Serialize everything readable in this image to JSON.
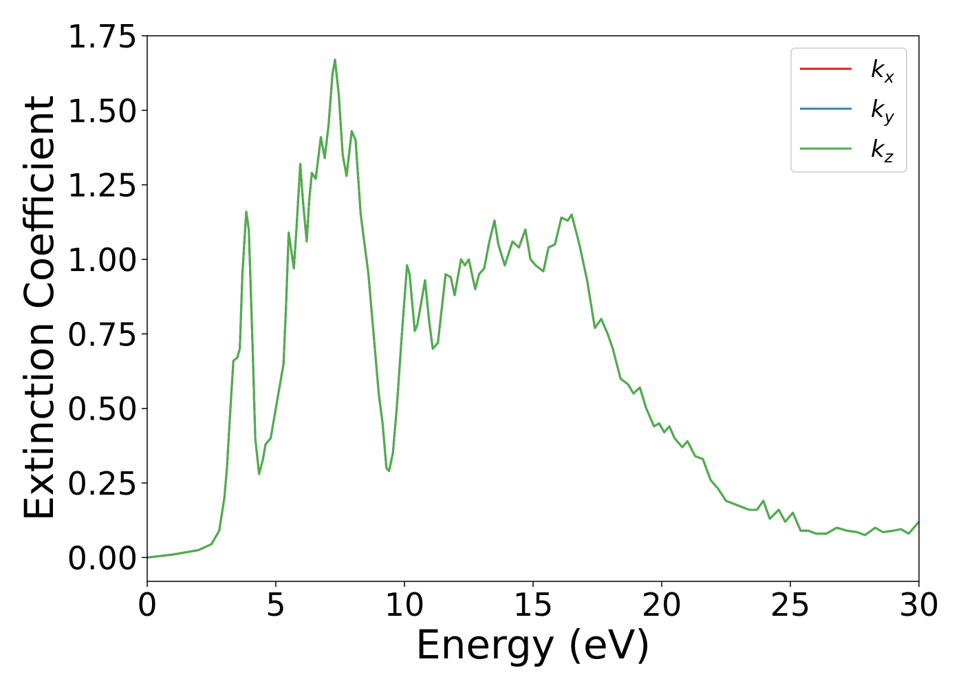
{
  "chart_data": {
    "type": "line",
    "xlabel": "Energy (eV)",
    "ylabel": "Extinction Coefficient",
    "xlim": [
      0,
      30
    ],
    "ylim": [
      -0.08,
      1.75
    ],
    "xticks": [
      0,
      5,
      10,
      15,
      20,
      25,
      30
    ],
    "yticks": [
      {
        "value": 0,
        "label": "0.00"
      },
      {
        "value": 0.25,
        "label": "0.25"
      },
      {
        "value": 0.5,
        "label": "0.50"
      },
      {
        "value": 0.75,
        "label": "0.75"
      },
      {
        "value": 1,
        "label": "1.00"
      },
      {
        "value": 1.25,
        "label": "1.25"
      },
      {
        "value": 1.5,
        "label": "1.50"
      },
      {
        "value": 1.75,
        "label": "1.75"
      }
    ],
    "legend": "upper right",
    "grid": false,
    "x": [
      0,
      1,
      2,
      2.5,
      2.8,
      3.0,
      3.1,
      3.2,
      3.35,
      3.5,
      3.6,
      3.7,
      3.85,
      3.95,
      4.1,
      4.2,
      4.35,
      4.5,
      4.6,
      4.8,
      5.0,
      5.3,
      5.4,
      5.5,
      5.6,
      5.7,
      5.8,
      5.95,
      6.05,
      6.2,
      6.3,
      6.4,
      6.55,
      6.75,
      6.9,
      7.05,
      7.2,
      7.3,
      7.45,
      7.6,
      7.75,
      7.95,
      8.1,
      8.3,
      8.6,
      8.8,
      9.0,
      9.15,
      9.3,
      9.4,
      9.55,
      9.7,
      9.9,
      10.1,
      10.2,
      10.4,
      10.5,
      10.8,
      10.95,
      11.1,
      11.3,
      11.6,
      11.8,
      11.95,
      12.2,
      12.35,
      12.5,
      12.75,
      12.9,
      13.1,
      13.3,
      13.5,
      13.65,
      13.9,
      14.2,
      14.45,
      14.7,
      14.9,
      15.1,
      15.4,
      15.6,
      15.85,
      16.1,
      16.35,
      16.5,
      16.8,
      17.1,
      17.4,
      17.65,
      17.9,
      18.1,
      18.4,
      18.7,
      18.9,
      19.15,
      19.4,
      19.7,
      19.9,
      20.1,
      20.3,
      20.5,
      20.8,
      21.0,
      21.3,
      21.6,
      21.9,
      22.2,
      22.5,
      22.8,
      23.1,
      23.4,
      23.7,
      23.95,
      24.2,
      24.55,
      24.8,
      25.1,
      25.4,
      25.7,
      26.0,
      26.4,
      26.8,
      27.2,
      27.6,
      27.9,
      28.3,
      28.6,
      29.0,
      29.3,
      29.6,
      30.0
    ],
    "series": [
      {
        "name": "kx",
        "color": "#e41a1c",
        "values": [
          0,
          0.01,
          0.025,
          0.045,
          0.09,
          0.2,
          0.3,
          0.45,
          0.66,
          0.67,
          0.7,
          0.95,
          1.16,
          1.1,
          0.7,
          0.4,
          0.28,
          0.33,
          0.38,
          0.4,
          0.5,
          0.65,
          0.85,
          1.09,
          1.03,
          0.97,
          1.1,
          1.32,
          1.2,
          1.06,
          1.2,
          1.29,
          1.27,
          1.41,
          1.34,
          1.45,
          1.62,
          1.67,
          1.55,
          1.35,
          1.28,
          1.43,
          1.4,
          1.15,
          0.95,
          0.75,
          0.55,
          0.45,
          0.3,
          0.29,
          0.35,
          0.5,
          0.75,
          0.98,
          0.95,
          0.76,
          0.78,
          0.93,
          0.8,
          0.7,
          0.72,
          0.95,
          0.94,
          0.88,
          1.0,
          0.98,
          1.0,
          0.9,
          0.95,
          0.97,
          1.06,
          1.13,
          1.05,
          0.98,
          1.06,
          1.04,
          1.1,
          1.0,
          0.98,
          0.96,
          1.04,
          1.05,
          1.14,
          1.13,
          1.15,
          1.05,
          0.93,
          0.77,
          0.8,
          0.75,
          0.7,
          0.6,
          0.58,
          0.55,
          0.57,
          0.5,
          0.44,
          0.45,
          0.42,
          0.44,
          0.4,
          0.37,
          0.39,
          0.34,
          0.33,
          0.26,
          0.23,
          0.19,
          0.18,
          0.17,
          0.16,
          0.16,
          0.19,
          0.13,
          0.16,
          0.12,
          0.15,
          0.09,
          0.09,
          0.08,
          0.08,
          0.1,
          0.09,
          0.085,
          0.075,
          0.1,
          0.085,
          0.09,
          0.095,
          0.08,
          0.12
        ]
      },
      {
        "name": "ky",
        "color": "#377eb8",
        "values": [
          0,
          0.01,
          0.025,
          0.045,
          0.09,
          0.2,
          0.3,
          0.45,
          0.66,
          0.67,
          0.7,
          0.95,
          1.16,
          1.1,
          0.7,
          0.4,
          0.28,
          0.33,
          0.38,
          0.4,
          0.5,
          0.65,
          0.85,
          1.09,
          1.03,
          0.97,
          1.1,
          1.32,
          1.2,
          1.06,
          1.2,
          1.29,
          1.27,
          1.41,
          1.34,
          1.45,
          1.62,
          1.67,
          1.55,
          1.35,
          1.28,
          1.43,
          1.4,
          1.15,
          0.95,
          0.75,
          0.55,
          0.45,
          0.3,
          0.29,
          0.35,
          0.5,
          0.75,
          0.98,
          0.95,
          0.76,
          0.78,
          0.93,
          0.8,
          0.7,
          0.72,
          0.95,
          0.94,
          0.88,
          1.0,
          0.98,
          1.0,
          0.9,
          0.95,
          0.97,
          1.06,
          1.13,
          1.05,
          0.98,
          1.06,
          1.04,
          1.1,
          1.0,
          0.98,
          0.96,
          1.04,
          1.05,
          1.14,
          1.13,
          1.15,
          1.05,
          0.93,
          0.77,
          0.8,
          0.75,
          0.7,
          0.6,
          0.58,
          0.55,
          0.57,
          0.5,
          0.44,
          0.45,
          0.42,
          0.44,
          0.4,
          0.37,
          0.39,
          0.34,
          0.33,
          0.26,
          0.23,
          0.19,
          0.18,
          0.17,
          0.16,
          0.16,
          0.19,
          0.13,
          0.16,
          0.12,
          0.15,
          0.09,
          0.09,
          0.08,
          0.08,
          0.1,
          0.09,
          0.085,
          0.075,
          0.1,
          0.085,
          0.09,
          0.095,
          0.08,
          0.12
        ]
      },
      {
        "name": "kz",
        "color": "#4daf4a",
        "values": [
          0,
          0.01,
          0.025,
          0.045,
          0.09,
          0.2,
          0.3,
          0.45,
          0.66,
          0.67,
          0.7,
          0.95,
          1.16,
          1.1,
          0.7,
          0.4,
          0.28,
          0.33,
          0.38,
          0.4,
          0.5,
          0.65,
          0.85,
          1.09,
          1.03,
          0.97,
          1.1,
          1.32,
          1.2,
          1.06,
          1.2,
          1.29,
          1.27,
          1.41,
          1.34,
          1.45,
          1.62,
          1.67,
          1.55,
          1.35,
          1.28,
          1.43,
          1.4,
          1.15,
          0.95,
          0.75,
          0.55,
          0.45,
          0.3,
          0.29,
          0.35,
          0.5,
          0.75,
          0.98,
          0.95,
          0.76,
          0.78,
          0.93,
          0.8,
          0.7,
          0.72,
          0.95,
          0.94,
          0.88,
          1.0,
          0.98,
          1.0,
          0.9,
          0.95,
          0.97,
          1.06,
          1.13,
          1.05,
          0.98,
          1.06,
          1.04,
          1.1,
          1.0,
          0.98,
          0.96,
          1.04,
          1.05,
          1.14,
          1.13,
          1.15,
          1.05,
          0.93,
          0.77,
          0.8,
          0.75,
          0.7,
          0.6,
          0.58,
          0.55,
          0.57,
          0.5,
          0.44,
          0.45,
          0.42,
          0.44,
          0.4,
          0.37,
          0.39,
          0.34,
          0.33,
          0.26,
          0.23,
          0.19,
          0.18,
          0.17,
          0.16,
          0.16,
          0.19,
          0.13,
          0.16,
          0.12,
          0.15,
          0.09,
          0.09,
          0.08,
          0.08,
          0.1,
          0.09,
          0.085,
          0.075,
          0.1,
          0.085,
          0.09,
          0.095,
          0.08,
          0.12
        ]
      }
    ]
  }
}
